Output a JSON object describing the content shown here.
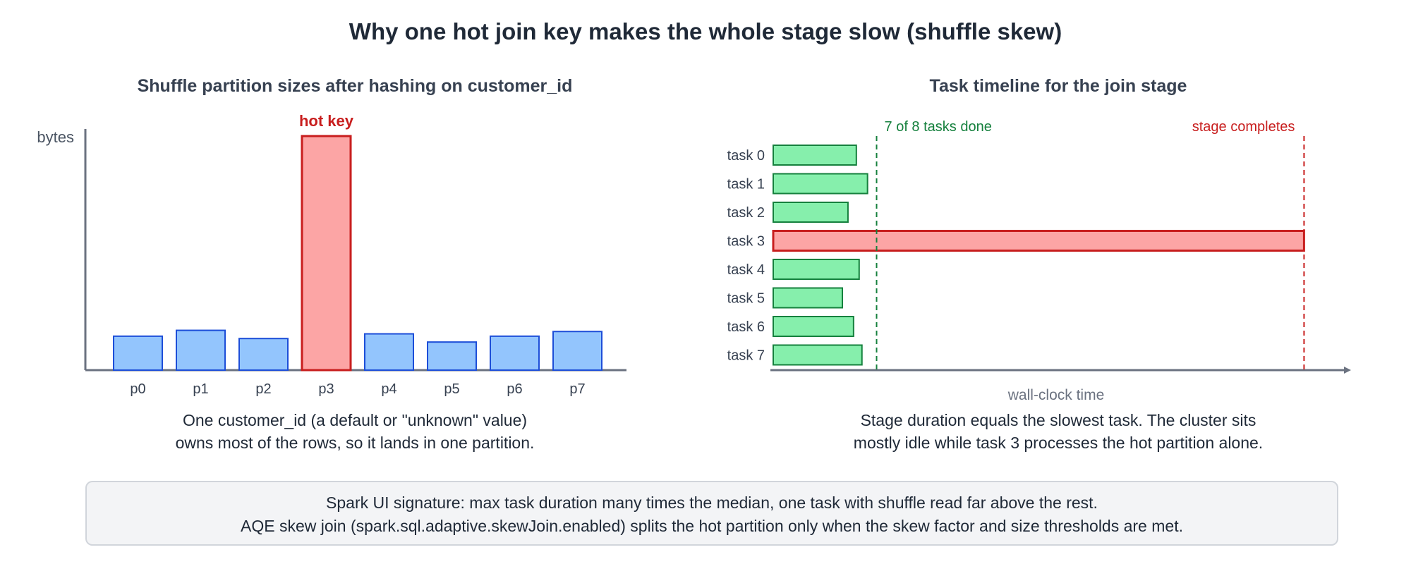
{
  "title": "Why one hot join key makes the whole stage slow (shuffle skew)",
  "left_panel": {
    "subtitle": "Shuffle partition sizes after hashing on customer_id",
    "caption_lines": [
      "One customer_id (a default or \"unknown\" value)",
      "owns most of the rows, so it lands in one partition."
    ]
  },
  "right_panel": {
    "subtitle": "Task timeline for the join stage",
    "caption_lines": [
      "Stage duration equals the slowest task. The cluster sits",
      "mostly idle while task 3 processes the hot partition alone."
    ]
  },
  "info_box": {
    "lines": [
      "Spark UI signature: max task duration many times the median, one task with shuffle read far above the rest.",
      "AQE skew join (spark.sql.adaptive.skewJoin.enabled) splits the hot partition only when the skew factor and size thresholds are met."
    ]
  },
  "colors": {
    "normal_bar_fill": "#93c5fd",
    "normal_bar_stroke": "#1d4ed8",
    "hot_fill": "#fca5a5",
    "hot_stroke": "#c81e1e",
    "task_fill": "#86efac",
    "task_stroke": "#15803d",
    "axis": "#6b7280",
    "done_marker": "#15803d",
    "complete_marker": "#c81e1e"
  },
  "chart_data": [
    {
      "type": "bar",
      "ylabel": "bytes",
      "categories": [
        "p0",
        "p1",
        "p2",
        "p3",
        "p4",
        "p5",
        "p6",
        "p7"
      ],
      "values": [
        14.5,
        17,
        13.5,
        100,
        15.5,
        12,
        14.5,
        16.5
      ],
      "ylim": [
        0,
        100
      ],
      "highlight_index": 3,
      "annotation": "hot key"
    },
    {
      "type": "bar",
      "orientation": "horizontal",
      "xlabel": "wall-clock time",
      "categories": [
        "task 0",
        "task 1",
        "task 2",
        "task 3",
        "task 4",
        "task 5",
        "task 6",
        "task 7"
      ],
      "values": [
        11.9,
        13.5,
        10.7,
        76,
        12.3,
        9.9,
        11.5,
        12.7
      ],
      "xlim": [
        0,
        83
      ],
      "highlight_index": 3,
      "markers": [
        {
          "value": 14.8,
          "label": "7 of 8 tasks done"
        },
        {
          "value": 76,
          "label": "stage completes"
        }
      ]
    }
  ]
}
